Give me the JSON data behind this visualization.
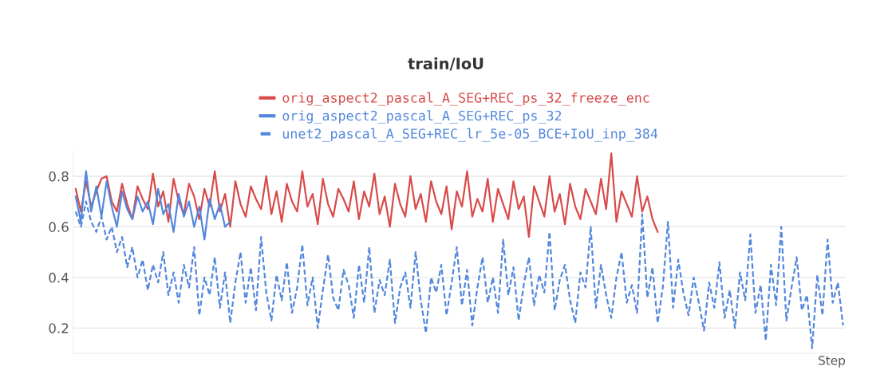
{
  "chart_data": {
    "type": "line",
    "title": "train/IoU",
    "xlabel": "Step",
    "categories": [
      null,
      null,
      null,
      null,
      null,
      null,
      null,
      null,
      null,
      null,
      null,
      null,
      null,
      null,
      null,
      null,
      null,
      null,
      null,
      null,
      null,
      null,
      null,
      null,
      null,
      null,
      null,
      null,
      null,
      null,
      null,
      null,
      null,
      null,
      null,
      null,
      null,
      null,
      null,
      null,
      null,
      null,
      null,
      null,
      null,
      null,
      null,
      null,
      null,
      null,
      null,
      null,
      null,
      null,
      null,
      null,
      null,
      null,
      null,
      null,
      null,
      null,
      null,
      null,
      null,
      null,
      null,
      null,
      null,
      null,
      null,
      null,
      null,
      null,
      null,
      null,
      null,
      null,
      null,
      null,
      null,
      null,
      null,
      null,
      null,
      null,
      null,
      null,
      null,
      null,
      null,
      null,
      null,
      null,
      null,
      null,
      null,
      null,
      null,
      null,
      null,
      null,
      null,
      null,
      null,
      null,
      null,
      null,
      null,
      null,
      null,
      null,
      null,
      null,
      null,
      null,
      null,
      null,
      null,
      null,
      null,
      null,
      null,
      null,
      null,
      null,
      null,
      null,
      null,
      null,
      null,
      null,
      null,
      null,
      null,
      null,
      null,
      null,
      null,
      null,
      null,
      null,
      null,
      null,
      null,
      null,
      null,
      null,
      null,
      null
    ],
    "series": [
      {
        "name": "orig_aspect2_pascal_A_SEG+REC_ps_32_freeze_enc",
        "color": "#d94a4a",
        "line_style": "solid",
        "values": [
          0.75,
          0.66,
          0.78,
          0.68,
          0.74,
          0.79,
          0.8,
          0.7,
          0.66,
          0.77,
          0.69,
          0.63,
          0.76,
          0.71,
          0.67,
          0.81,
          0.68,
          0.74,
          0.62,
          0.79,
          0.7,
          0.65,
          0.77,
          0.72,
          0.63,
          0.75,
          0.68,
          0.82,
          0.66,
          0.73,
          0.6,
          0.78,
          0.69,
          0.64,
          0.76,
          0.71,
          0.67,
          0.8,
          0.65,
          0.74,
          0.62,
          0.77,
          0.7,
          0.66,
          0.82,
          0.68,
          0.73,
          0.61,
          0.79,
          0.69,
          0.64,
          0.75,
          0.71,
          0.66,
          0.78,
          0.63,
          0.74,
          0.68,
          0.81,
          0.65,
          0.72,
          0.6,
          0.77,
          0.69,
          0.64,
          0.8,
          0.67,
          0.73,
          0.62,
          0.78,
          0.7,
          0.65,
          0.76,
          0.59,
          0.74,
          0.68,
          0.82,
          0.64,
          0.71,
          0.66,
          0.79,
          0.62,
          0.75,
          0.69,
          0.63,
          0.78,
          0.67,
          0.72,
          0.56,
          0.76,
          0.7,
          0.64,
          0.8,
          0.66,
          0.73,
          0.61,
          0.77,
          0.68,
          0.63,
          0.75,
          0.7,
          0.65,
          0.79,
          0.67,
          0.89,
          0.62,
          0.74,
          0.69,
          0.64,
          0.8,
          0.66,
          0.72,
          0.63,
          0.58,
          null,
          null,
          null,
          null,
          null,
          null,
          null,
          null,
          null,
          null,
          null,
          null,
          null,
          null,
          null,
          null,
          null,
          null,
          null,
          null,
          null,
          null,
          null,
          null,
          null,
          null,
          null,
          null,
          null,
          null,
          null,
          null,
          null,
          null,
          null,
          null
        ]
      },
      {
        "name": "orig_aspect2_pascal_A_SEG+REC_ps_32",
        "color": "#5387dd",
        "line_style": "solid",
        "values": [
          0.72,
          0.62,
          0.82,
          0.66,
          0.76,
          0.64,
          0.78,
          0.68,
          0.6,
          0.74,
          0.67,
          0.63,
          0.72,
          0.66,
          0.7,
          0.61,
          0.75,
          0.65,
          0.69,
          0.58,
          0.73,
          0.64,
          0.7,
          0.6,
          0.68,
          0.55,
          0.71,
          0.63,
          0.69,
          0.6,
          0.62,
          null,
          null,
          null,
          null,
          null,
          null,
          null,
          null,
          null,
          null,
          null,
          null,
          null,
          null,
          null,
          null,
          null,
          null,
          null,
          null,
          null,
          null,
          null,
          null,
          null,
          null,
          null,
          null,
          null,
          null,
          null,
          null,
          null,
          null,
          null,
          null,
          null,
          null,
          null,
          null,
          null,
          null,
          null,
          null,
          null,
          null,
          null,
          null,
          null,
          null,
          null,
          null,
          null,
          null,
          null,
          null,
          null,
          null,
          null,
          null,
          null,
          null,
          null,
          null,
          null,
          null,
          null,
          null,
          null,
          null,
          null,
          null,
          null,
          null,
          null,
          null,
          null,
          null,
          null,
          null,
          null,
          null,
          null,
          null,
          null,
          null,
          null,
          null,
          null,
          null,
          null,
          null,
          null,
          null,
          null,
          null,
          null,
          null,
          null,
          null,
          null,
          null,
          null,
          null,
          null,
          null,
          null,
          null,
          null,
          null,
          null,
          null,
          null,
          null,
          null,
          null,
          null,
          null,
          null
        ]
      },
      {
        "name": "unet2_pascal_A_SEG+REC_lr_5e-05_BCE+IoU_inp_384",
        "color": "#5387dd",
        "line_style": "dashed",
        "values": [
          0.66,
          0.6,
          0.7,
          0.62,
          0.58,
          0.64,
          0.55,
          0.6,
          0.5,
          0.56,
          0.44,
          0.52,
          0.4,
          0.47,
          0.35,
          0.45,
          0.38,
          0.5,
          0.33,
          0.42,
          0.3,
          0.45,
          0.36,
          0.52,
          0.25,
          0.4,
          0.33,
          0.48,
          0.28,
          0.42,
          0.22,
          0.38,
          0.5,
          0.3,
          0.44,
          0.27,
          0.56,
          0.34,
          0.23,
          0.41,
          0.31,
          0.46,
          0.26,
          0.36,
          0.53,
          0.29,
          0.4,
          0.2,
          0.35,
          0.49,
          0.32,
          0.27,
          0.43,
          0.37,
          0.24,
          0.45,
          0.3,
          0.52,
          0.26,
          0.39,
          0.33,
          0.47,
          0.22,
          0.36,
          0.42,
          0.28,
          0.5,
          0.31,
          0.18,
          0.4,
          0.34,
          0.45,
          0.25,
          0.38,
          0.52,
          0.29,
          0.43,
          0.21,
          0.36,
          0.48,
          0.3,
          0.4,
          0.26,
          0.55,
          0.33,
          0.44,
          0.23,
          0.37,
          0.48,
          0.29,
          0.41,
          0.34,
          0.58,
          0.27,
          0.39,
          0.45,
          0.31,
          0.22,
          0.42,
          0.36,
          0.6,
          0.28,
          0.45,
          0.33,
          0.24,
          0.4,
          0.5,
          0.3,
          0.37,
          0.26,
          0.65,
          0.32,
          0.44,
          0.22,
          0.36,
          0.62,
          0.28,
          0.47,
          0.34,
          0.25,
          0.4,
          0.3,
          0.19,
          0.38,
          0.28,
          0.46,
          0.24,
          0.35,
          0.2,
          0.42,
          0.31,
          0.57,
          0.26,
          0.37,
          0.15,
          0.45,
          0.29,
          0.6,
          0.23,
          0.36,
          0.48,
          0.27,
          0.33,
          0.12,
          0.41,
          0.25,
          0.55,
          0.3,
          0.38,
          0.21
        ]
      }
    ],
    "ylim": [
      0.1,
      0.9
    ],
    "yticks": [
      0.2,
      0.4,
      0.6,
      0.8
    ],
    "grid": "y",
    "legend": "top",
    "tick_labels": "y"
  }
}
